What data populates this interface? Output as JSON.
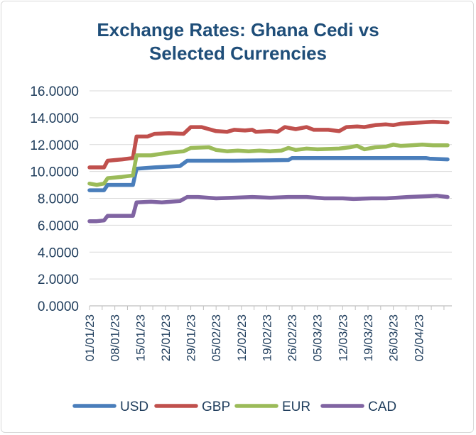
{
  "chart_data": {
    "type": "line",
    "title": "Exchange Rates: Ghana Cedi vs Selected Currencies",
    "title_lines": [
      "Exchange Rates: Ghana Cedi vs",
      "Selected Currencies"
    ],
    "xlabel": "",
    "ylabel": "",
    "ylim": [
      0,
      16
    ],
    "yticks": [
      "0.0000",
      "2.0000",
      "4.0000",
      "6.0000",
      "8.0000",
      "10.0000",
      "12.0000",
      "14.0000",
      "16.0000"
    ],
    "grid": true,
    "legend": "bottom",
    "x_start": "2023-01-01",
    "x_end": "2023-04-06",
    "xticks": [
      {
        "label": "01/01/23",
        "day": 0
      },
      {
        "label": "08/01/23",
        "day": 7
      },
      {
        "label": "15/01/23",
        "day": 14
      },
      {
        "label": "22/01/23",
        "day": 21
      },
      {
        "label": "29/01/23",
        "day": 28
      },
      {
        "label": "05/02/23",
        "day": 35
      },
      {
        "label": "12/02/23",
        "day": 42
      },
      {
        "label": "19/02/23",
        "day": 49
      },
      {
        "label": "26/02/23",
        "day": 56
      },
      {
        "label": "05/03/23",
        "day": 63
      },
      {
        "label": "12/03/23",
        "day": 70
      },
      {
        "label": "19/03/23",
        "day": 77
      },
      {
        "label": "26/03/23",
        "day": 84
      },
      {
        "label": "02/04/23",
        "day": 91
      }
    ],
    "series": [
      {
        "name": "USD",
        "color": "#4a7ebb",
        "points": [
          [
            0,
            8.6
          ],
          [
            4,
            8.6
          ],
          [
            5,
            9.0
          ],
          [
            12,
            9.0
          ],
          [
            13,
            10.2
          ],
          [
            18,
            10.3
          ],
          [
            25,
            10.4
          ],
          [
            27,
            10.8
          ],
          [
            40,
            10.8
          ],
          [
            55,
            10.85
          ],
          [
            56,
            11.0
          ],
          [
            93,
            11.0
          ],
          [
            94,
            10.95
          ],
          [
            99,
            10.9
          ]
        ]
      },
      {
        "name": "GBP",
        "color": "#c0504d",
        "points": [
          [
            0,
            10.3
          ],
          [
            4,
            10.3
          ],
          [
            5,
            10.8
          ],
          [
            9,
            10.9
          ],
          [
            12,
            11.0
          ],
          [
            13,
            12.6
          ],
          [
            16,
            12.6
          ],
          [
            18,
            12.8
          ],
          [
            22,
            12.85
          ],
          [
            26,
            12.8
          ],
          [
            28,
            13.3
          ],
          [
            31,
            13.3
          ],
          [
            35,
            13.0
          ],
          [
            38,
            12.95
          ],
          [
            40,
            13.1
          ],
          [
            43,
            13.05
          ],
          [
            45,
            13.1
          ],
          [
            46,
            12.95
          ],
          [
            50,
            13.0
          ],
          [
            52,
            12.95
          ],
          [
            54,
            13.3
          ],
          [
            57,
            13.15
          ],
          [
            60,
            13.3
          ],
          [
            62,
            13.1
          ],
          [
            66,
            13.1
          ],
          [
            69,
            13.0
          ],
          [
            71,
            13.3
          ],
          [
            74,
            13.35
          ],
          [
            76,
            13.3
          ],
          [
            79,
            13.45
          ],
          [
            82,
            13.5
          ],
          [
            84,
            13.45
          ],
          [
            86,
            13.55
          ],
          [
            89,
            13.6
          ],
          [
            92,
            13.65
          ],
          [
            95,
            13.7
          ],
          [
            99,
            13.65
          ]
        ]
      },
      {
        "name": "EUR",
        "color": "#9bbb59",
        "points": [
          [
            0,
            9.1
          ],
          [
            2,
            9.0
          ],
          [
            4,
            9.1
          ],
          [
            5,
            9.5
          ],
          [
            9,
            9.6
          ],
          [
            12,
            9.7
          ],
          [
            13,
            11.2
          ],
          [
            17,
            11.2
          ],
          [
            22,
            11.4
          ],
          [
            26,
            11.5
          ],
          [
            28,
            11.75
          ],
          [
            33,
            11.8
          ],
          [
            35,
            11.6
          ],
          [
            38,
            11.5
          ],
          [
            41,
            11.55
          ],
          [
            44,
            11.5
          ],
          [
            47,
            11.55
          ],
          [
            50,
            11.5
          ],
          [
            53,
            11.55
          ],
          [
            55,
            11.75
          ],
          [
            57,
            11.6
          ],
          [
            60,
            11.7
          ],
          [
            63,
            11.65
          ],
          [
            69,
            11.7
          ],
          [
            72,
            11.8
          ],
          [
            74,
            11.9
          ],
          [
            76,
            11.65
          ],
          [
            79,
            11.8
          ],
          [
            82,
            11.85
          ],
          [
            84,
            12.0
          ],
          [
            86,
            11.9
          ],
          [
            89,
            11.95
          ],
          [
            92,
            12.0
          ],
          [
            95,
            11.95
          ],
          [
            99,
            11.95
          ]
        ]
      },
      {
        "name": "CAD",
        "color": "#8064a2",
        "points": [
          [
            0,
            6.3
          ],
          [
            2,
            6.3
          ],
          [
            4,
            6.35
          ],
          [
            5,
            6.7
          ],
          [
            12,
            6.7
          ],
          [
            13,
            7.7
          ],
          [
            17,
            7.75
          ],
          [
            20,
            7.7
          ],
          [
            25,
            7.8
          ],
          [
            27,
            8.1
          ],
          [
            30,
            8.1
          ],
          [
            35,
            8.0
          ],
          [
            40,
            8.05
          ],
          [
            45,
            8.1
          ],
          [
            50,
            8.05
          ],
          [
            55,
            8.1
          ],
          [
            60,
            8.1
          ],
          [
            65,
            8.0
          ],
          [
            70,
            8.0
          ],
          [
            73,
            7.95
          ],
          [
            78,
            8.0
          ],
          [
            82,
            8.0
          ],
          [
            85,
            8.05
          ],
          [
            88,
            8.1
          ],
          [
            92,
            8.15
          ],
          [
            96,
            8.2
          ],
          [
            99,
            8.1
          ]
        ]
      }
    ]
  }
}
